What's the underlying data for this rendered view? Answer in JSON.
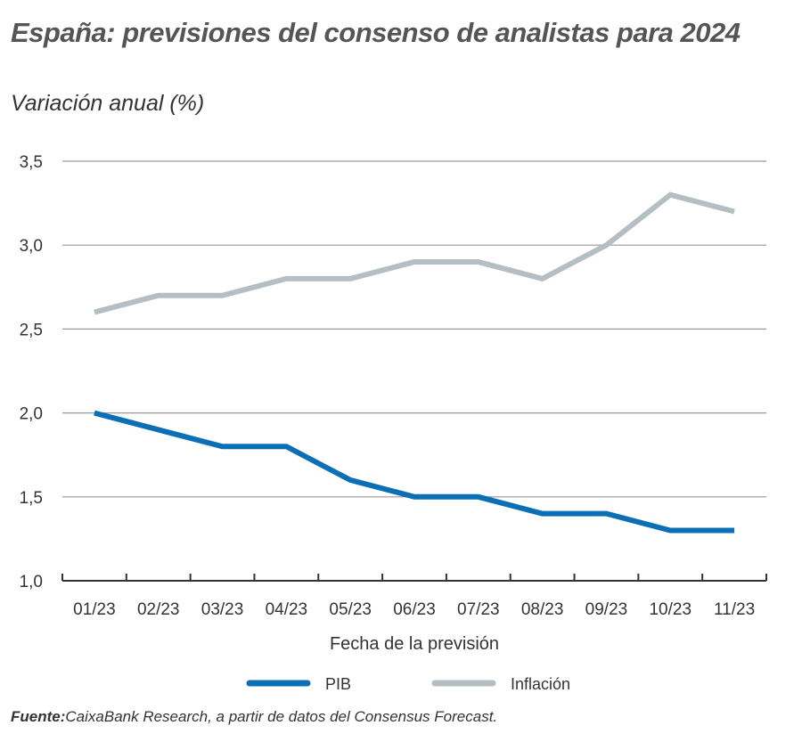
{
  "title": "España: previsiones del consenso de analistas para 2024",
  "subtitle": "Variación anual (%)",
  "source_label": "Fuente:",
  "source_text": "CaixaBank Research, a partir de datos del Consensus Forecast.",
  "chart_data": {
    "type": "line",
    "title": "España: previsiones del consenso de analistas para 2024",
    "subtitle": "Variación anual (%)",
    "xlabel": "Fecha de la previsión",
    "ylabel": "",
    "categories": [
      "01/23",
      "02/23",
      "03/23",
      "04/23",
      "05/23",
      "06/23",
      "07/23",
      "08/23",
      "09/23",
      "10/23",
      "11/23"
    ],
    "ylim": [
      1.0,
      3.5
    ],
    "yticks": [
      "1,0",
      "1,5",
      "2,0",
      "2,5",
      "3,0",
      "3,5"
    ],
    "grid": true,
    "legend_position": "bottom",
    "series": [
      {
        "name": "PIB",
        "color": "#0a6fb4",
        "values": [
          2.0,
          1.9,
          1.8,
          1.8,
          1.6,
          1.5,
          1.5,
          1.4,
          1.4,
          1.3,
          1.3
        ]
      },
      {
        "name": "Inflación",
        "color": "#b5bec3",
        "values": [
          2.6,
          2.7,
          2.7,
          2.8,
          2.8,
          2.9,
          2.9,
          2.8,
          3.0,
          3.3,
          3.2
        ]
      }
    ]
  }
}
